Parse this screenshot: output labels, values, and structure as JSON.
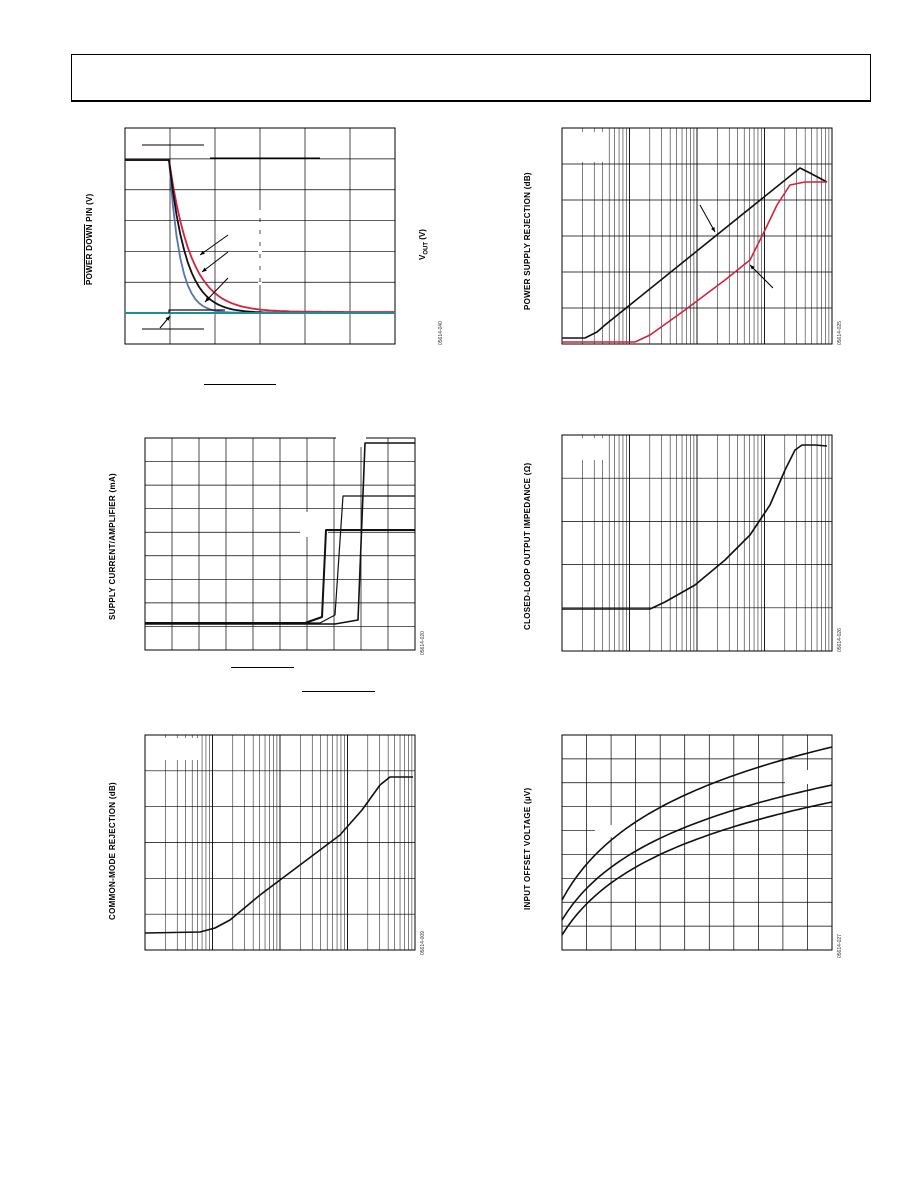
{
  "charts": [
    {
      "id": "power-down",
      "ylabel_prefix": "POWER DOWN",
      "ylabel_suffix": "PIN (V)",
      "right_label_main": "V",
      "right_label_sub": "OUT",
      "right_label_tail": "(V)",
      "fig_number": "05614-040",
      "colors": {
        "black": "#111111",
        "red": "#d4213d",
        "blue": "#5573b8",
        "teal": "#1e8c9a"
      }
    },
    {
      "id": "psrr",
      "ylabel": "POWER SUPPLY REJECTION (dB)",
      "fig_number": "05614-025",
      "colors": {
        "black": "#111111",
        "red": "#d4213d"
      }
    },
    {
      "id": "supply-current",
      "ylabel": "SUPPLY CURRENT/AMPLIFIER (mA)",
      "fig_number": "05614-020",
      "colors": {
        "black": "#111111"
      }
    },
    {
      "id": "output-impedance",
      "ylabel": "CLOSED-LOOP OUTPUT IMPEDANCE (Ω)",
      "fig_number": "05614-026",
      "colors": {
        "black": "#111111"
      }
    },
    {
      "id": "cmrr",
      "ylabel": "COMMON-MODE REJECTION (dB)",
      "fig_number": "05614-009",
      "colors": {
        "black": "#111111"
      }
    },
    {
      "id": "offset-voltage",
      "ylabel": "INPUT OFFSET VOLTAGE (µV)",
      "fig_number": "05614-027",
      "colors": {
        "black": "#111111"
      }
    }
  ]
}
